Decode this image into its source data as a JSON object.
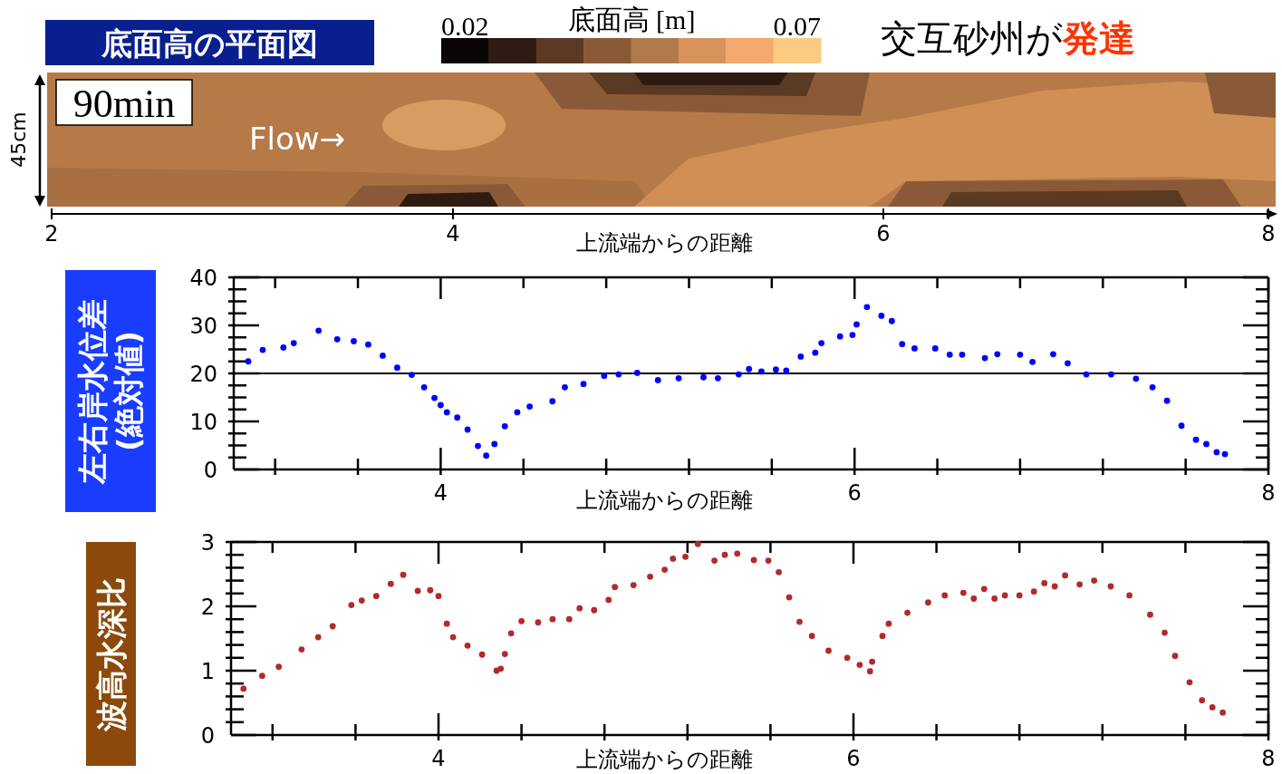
{
  "chart_data": [
    {
      "type": "other",
      "title": "底面高の平面図",
      "clabel": "底面高 [m]",
      "xlabel": "上流端からの距離",
      "ylabel": "45cm",
      "annotations": [
        "0.02",
        "0.07",
        "交互砂州が",
        "発達",
        "90min",
        "Flow→",
        "2",
        "4",
        "6",
        "8"
      ]
    },
    {
      "type": "scatter",
      "xlabel": "上流端からの距離",
      "ylabel": "左右岸水位差\n(絶対値)",
      "marker": "circle",
      "xlim": [
        3,
        8
      ],
      "xticks": [
        {
          "value": 3.2,
          "label": null
        },
        {
          "value": 3.6,
          "label": null
        },
        4,
        {
          "value": 4.4,
          "label": null
        },
        {
          "value": 4.8,
          "label": null
        },
        {
          "value": 5.2,
          "label": null
        },
        {
          "value": 5.6,
          "label": null
        },
        6,
        {
          "value": 6.4,
          "label": null
        },
        {
          "value": 6.8,
          "label": null
        },
        {
          "value": 7.2,
          "label": null
        },
        {
          "value": 7.6,
          "label": null
        },
        8
      ],
      "ylim": [
        0,
        40
      ],
      "yticks": [
        0,
        {
          "value": 2.5,
          "label": null
        },
        {
          "value": 5,
          "label": null
        },
        {
          "value": 7.5,
          "label": null
        },
        10,
        {
          "value": 12.5,
          "label": null
        },
        {
          "value": 15,
          "label": null
        },
        {
          "value": 17.5,
          "label": null
        },
        20,
        {
          "value": 22.5,
          "label": null
        },
        {
          "value": 25,
          "label": null
        },
        {
          "value": 27.5,
          "label": null
        },
        30,
        {
          "value": 32.5,
          "label": null
        },
        {
          "value": 35,
          "label": null
        },
        {
          "value": 37.5,
          "label": null
        },
        40
      ],
      "ref_lines": [
        {
          "axis": "y",
          "value": 20,
          "color": "#000000"
        }
      ],
      "x": [
        3.07,
        3.14,
        3.24,
        3.29,
        3.41,
        3.5,
        3.58,
        3.65,
        3.72,
        3.79,
        3.86,
        3.92,
        3.97,
        4.0,
        4.03,
        4.08,
        4.13,
        4.18,
        4.22,
        4.26,
        4.31,
        4.37,
        4.43,
        4.54,
        4.6,
        4.69,
        4.79,
        4.86,
        4.95,
        5.05,
        5.15,
        5.27,
        5.34,
        5.44,
        5.49,
        5.55,
        5.62,
        5.67,
        5.74,
        5.81,
        5.84,
        5.93,
        5.99,
        6.01,
        6.06,
        6.13,
        6.18,
        6.23,
        6.29,
        6.39,
        6.46,
        6.52,
        6.63,
        6.69,
        6.8,
        6.86,
        6.96,
        7.03,
        7.12,
        7.24,
        7.36,
        7.44,
        7.51,
        7.58,
        7.65,
        7.7,
        7.75,
        7.79
      ],
      "series": [
        {
          "color": "#0000ff",
          "values": [
            22.5,
            24.9,
            25.4,
            26.3,
            28.9,
            27.1,
            26.7,
            26.0,
            23.7,
            21.2,
            19.7,
            17.1,
            14.9,
            13.4,
            11.9,
            10.8,
            8.3,
            4.9,
            2.9,
            5.3,
            9.0,
            11.9,
            13.1,
            14.2,
            17.1,
            17.8,
            19.5,
            19.8,
            20.1,
            18.6,
            19.0,
            19.2,
            19.0,
            19.8,
            20.9,
            20.4,
            20.8,
            20.6,
            23.5,
            24.3,
            26.3,
            27.7,
            28.0,
            30.2,
            33.8,
            32.0,
            30.9,
            26.1,
            25.2,
            25.2,
            23.9,
            23.9,
            23.2,
            24.0,
            23.9,
            22.4,
            24.0,
            22.1,
            19.8,
            19.8,
            18.9,
            17.1,
            14.3,
            9.1,
            6.2,
            5.3,
            3.6,
            3.2
          ]
        }
      ]
    },
    {
      "type": "scatter",
      "xlabel": "上流端からの距離",
      "ylabel": "波高水深比",
      "marker": "circle",
      "xlim": [
        3,
        8
      ],
      "xticks": [
        {
          "value": 3.2,
          "label": null
        },
        {
          "value": 3.6,
          "label": null
        },
        4,
        {
          "value": 4.4,
          "label": null
        },
        {
          "value": 4.8,
          "label": null
        },
        {
          "value": 5.2,
          "label": null
        },
        {
          "value": 5.6,
          "label": null
        },
        6,
        {
          "value": 6.4,
          "label": null
        },
        {
          "value": 6.8,
          "label": null
        },
        {
          "value": 7.2,
          "label": null
        },
        {
          "value": 7.6,
          "label": null
        },
        8
      ],
      "ylim": [
        0,
        3
      ],
      "yticks": [
        0,
        {
          "value": 0.2,
          "label": null
        },
        {
          "value": 0.4,
          "label": null
        },
        {
          "value": 0.6,
          "label": null
        },
        {
          "value": 0.8,
          "label": null
        },
        1,
        {
          "value": 1.2,
          "label": null
        },
        {
          "value": 1.4,
          "label": null
        },
        {
          "value": 1.6,
          "label": null
        },
        {
          "value": 1.8,
          "label": null
        },
        2,
        {
          "value": 2.2,
          "label": null
        },
        {
          "value": 2.4,
          "label": null
        },
        {
          "value": 2.6,
          "label": null
        },
        {
          "value": 2.8,
          "label": null
        },
        3
      ],
      "x": [
        3.06,
        3.15,
        3.23,
        3.34,
        3.42,
        3.49,
        3.58,
        3.63,
        3.7,
        3.77,
        3.83,
        3.9,
        3.96,
        4.0,
        4.04,
        4.07,
        4.14,
        4.21,
        4.28,
        4.3,
        4.32,
        4.35,
        4.4,
        4.48,
        4.55,
        4.63,
        4.68,
        4.75,
        4.82,
        4.85,
        4.94,
        5.02,
        5.09,
        5.13,
        5.19,
        5.25,
        5.33,
        5.38,
        5.44,
        5.52,
        5.59,
        5.64,
        5.69,
        5.74,
        5.8,
        5.88,
        5.97,
        6.03,
        6.08,
        6.09,
        6.14,
        6.17,
        6.26,
        6.36,
        6.44,
        6.53,
        6.58,
        6.63,
        6.68,
        6.73,
        6.8,
        6.87,
        6.92,
        6.97,
        7.02,
        7.09,
        7.16,
        7.24,
        7.33,
        7.43,
        7.5,
        7.55,
        7.62,
        7.68,
        7.73,
        7.78
      ],
      "series": [
        {
          "color": "#b22a2a",
          "values": [
            0.72,
            0.92,
            1.06,
            1.33,
            1.52,
            1.69,
            2.02,
            2.09,
            2.16,
            2.35,
            2.49,
            2.24,
            2.25,
            2.16,
            1.73,
            1.52,
            1.39,
            1.25,
            1.0,
            1.03,
            1.26,
            1.58,
            1.77,
            1.75,
            1.8,
            1.8,
            1.97,
            1.94,
            2.1,
            2.3,
            2.33,
            2.46,
            2.57,
            2.74,
            2.77,
            2.97,
            2.71,
            2.8,
            2.82,
            2.72,
            2.71,
            2.53,
            2.14,
            1.76,
            1.54,
            1.31,
            1.2,
            1.09,
            0.99,
            1.14,
            1.54,
            1.73,
            1.9,
            2.06,
            2.17,
            2.21,
            2.12,
            2.27,
            2.12,
            2.17,
            2.17,
            2.23,
            2.36,
            2.31,
            2.48,
            2.34,
            2.4,
            2.31,
            2.17,
            1.87,
            1.59,
            1.23,
            0.82,
            0.54,
            0.43,
            0.35
          ]
        }
      ]
    }
  ]
}
